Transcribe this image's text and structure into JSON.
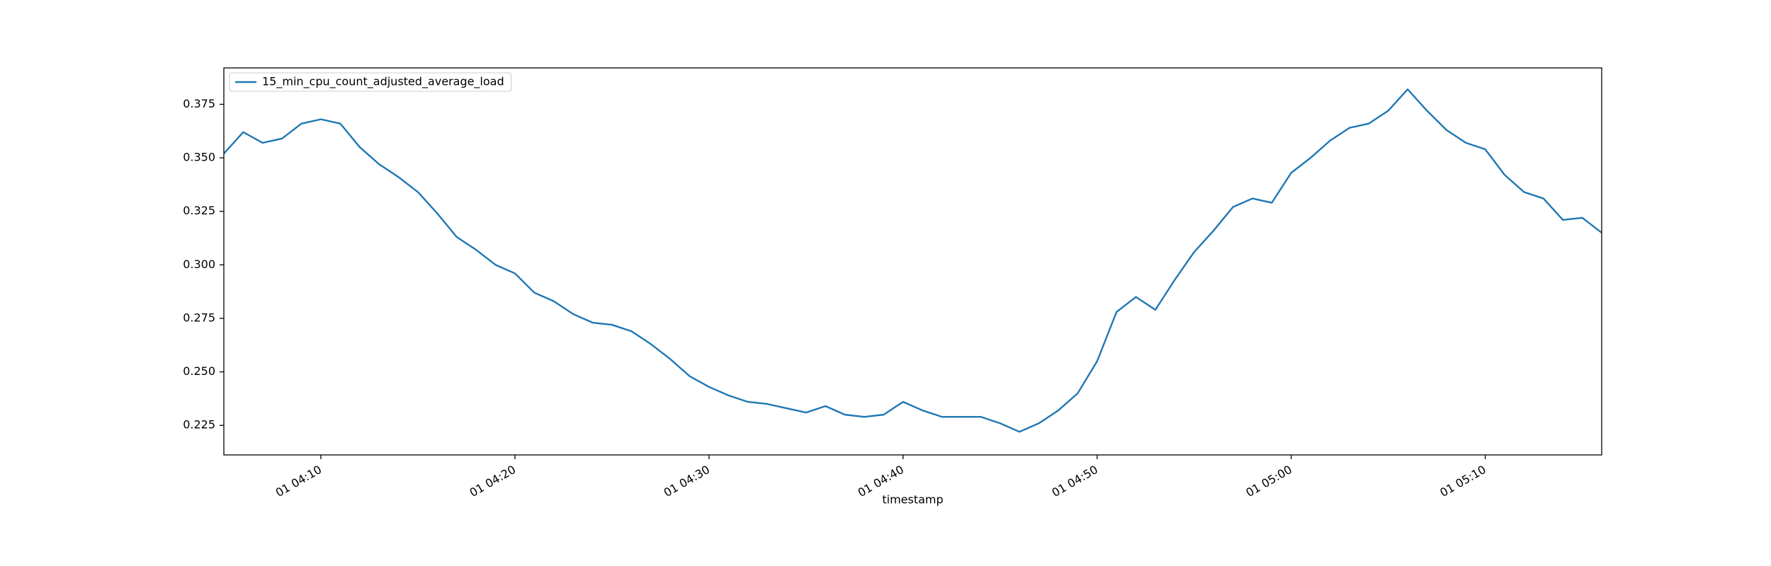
{
  "chart_data": {
    "type": "line",
    "x": [
      "01 04:05",
      "01 04:06",
      "01 04:07",
      "01 04:08",
      "01 04:09",
      "01 04:10",
      "01 04:11",
      "01 04:12",
      "01 04:13",
      "01 04:14",
      "01 04:15",
      "01 04:16",
      "01 04:17",
      "01 04:18",
      "01 04:19",
      "01 04:20",
      "01 04:21",
      "01 04:22",
      "01 04:23",
      "01 04:24",
      "01 04:25",
      "01 04:26",
      "01 04:27",
      "01 04:28",
      "01 04:29",
      "01 04:30",
      "01 04:31",
      "01 04:32",
      "01 04:33",
      "01 04:34",
      "01 04:35",
      "01 04:36",
      "01 04:37",
      "01 04:38",
      "01 04:39",
      "01 04:40",
      "01 04:41",
      "01 04:42",
      "01 04:43",
      "01 04:44",
      "01 04:45",
      "01 04:46",
      "01 04:47",
      "01 04:48",
      "01 04:49",
      "01 04:50",
      "01 04:51",
      "01 04:52",
      "01 04:53",
      "01 04:54",
      "01 04:55",
      "01 04:56",
      "01 04:57",
      "01 04:58",
      "01 04:59",
      "01 05:00",
      "01 05:01",
      "01 05:02",
      "01 05:03",
      "01 05:04",
      "01 05:05",
      "01 05:06",
      "01 05:07",
      "01 05:08",
      "01 05:09",
      "01 05:10",
      "01 05:11",
      "01 05:12",
      "01 05:13",
      "01 05:14",
      "01 05:15",
      "01 05:16"
    ],
    "series": [
      {
        "name": "15_min_cpu_count_adjusted_average_load",
        "color": "#1f77b4",
        "values": [
          0.352,
          0.362,
          0.357,
          0.359,
          0.366,
          0.368,
          0.366,
          0.355,
          0.347,
          0.341,
          0.334,
          0.324,
          0.313,
          0.307,
          0.3,
          0.296,
          0.287,
          0.283,
          0.277,
          0.273,
          0.272,
          0.269,
          0.263,
          0.256,
          0.248,
          0.243,
          0.239,
          0.236,
          0.235,
          0.233,
          0.231,
          0.234,
          0.23,
          0.229,
          0.23,
          0.236,
          0.232,
          0.229,
          0.229,
          0.229,
          0.226,
          0.222,
          0.226,
          0.232,
          0.24,
          0.255,
          0.278,
          0.285,
          0.279,
          0.293,
          0.306,
          0.316,
          0.327,
          0.331,
          0.329,
          0.343,
          0.35,
          0.358,
          0.364,
          0.366,
          0.372,
          0.382,
          0.372,
          0.363,
          0.357,
          0.354,
          0.342,
          0.334,
          0.331,
          0.321,
          0.322,
          0.315
        ]
      }
    ],
    "xlabel": "timestamp",
    "xlim": [
      "01 04:05",
      "01 05:16"
    ],
    "xticks": [
      "01 04:10",
      "01 04:20",
      "01 04:30",
      "01 04:40",
      "01 04:50",
      "01 05:00",
      "01 05:10"
    ],
    "ylim": [
      0.2112,
      0.392
    ],
    "yticks": [
      0.225,
      {
        "value": 0.25,
        "label": "0.250"
      },
      0.275,
      {
        "value": 0.3,
        "label": "0.300"
      },
      0.325,
      {
        "value": 0.35,
        "label": "0.350"
      },
      0.375
    ],
    "legend": "upper left"
  }
}
